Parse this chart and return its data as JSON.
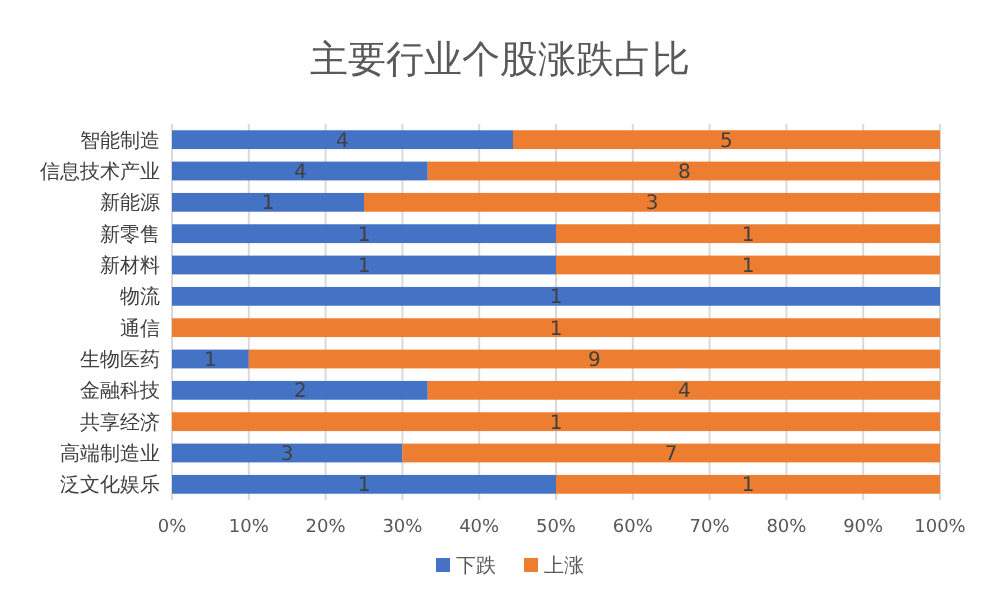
{
  "chart_data": {
    "type": "bar",
    "title": "主要行业个股涨跌占比",
    "orientation": "horizontal",
    "stacked": true,
    "categories": [
      "智能制造",
      "信息技术产业",
      "新能源",
      "新零售",
      "新材料",
      "物流",
      "通信",
      "生物医药",
      "金融科技",
      "共享经济",
      "高端制造业",
      "泛文化娱乐"
    ],
    "series": [
      {
        "name": "下跌",
        "color": "#4472c4",
        "values": [
          44.4,
          33.3,
          25,
          50,
          50,
          100,
          0,
          10,
          33.3,
          0,
          30,
          50
        ]
      },
      {
        "name": "上涨",
        "color": "#ed7d31",
        "values": [
          55.6,
          66.7,
          75,
          50,
          50,
          0,
          100,
          90,
          66.7,
          100,
          70,
          50
        ]
      }
    ],
    "annotations": [
      {
        "text": "4",
        "x": 22.2,
        "y": "智能制造"
      },
      {
        "text": "5",
        "x": 72.2,
        "y": "智能制造"
      },
      {
        "text": "4",
        "x": 16.7,
        "y": "信息技术产业"
      },
      {
        "text": "8",
        "x": 66.7,
        "y": "信息技术产业"
      },
      {
        "text": "1",
        "x": 12.5,
        "y": "新能源"
      },
      {
        "text": "3",
        "x": 62.5,
        "y": "新能源"
      },
      {
        "text": "1",
        "x": 25,
        "y": "新零售"
      },
      {
        "text": "1",
        "x": 75,
        "y": "新零售"
      },
      {
        "text": "1",
        "x": 25,
        "y": "新材料"
      },
      {
        "text": "1",
        "x": 75,
        "y": "新材料"
      },
      {
        "text": "1",
        "x": 50,
        "y": "物流"
      },
      {
        "text": "1",
        "x": 50,
        "y": "通信"
      },
      {
        "text": "1",
        "x": 5,
        "y": "生物医药"
      },
      {
        "text": "9",
        "x": 55,
        "y": "生物医药"
      },
      {
        "text": "2",
        "x": 16.7,
        "y": "金融科技"
      },
      {
        "text": "4",
        "x": 66.7,
        "y": "金融科技"
      },
      {
        "text": "1",
        "x": 50,
        "y": "共享经济"
      },
      {
        "text": "3",
        "x": 15,
        "y": "高端制造业"
      },
      {
        "text": "7",
        "x": 65,
        "y": "高端制造业"
      },
      {
        "text": "1",
        "x": 25,
        "y": "泛文化娱乐"
      },
      {
        "text": "1",
        "x": 75,
        "y": "泛文化娱乐"
      }
    ],
    "xlim": [
      0,
      100
    ],
    "xticks": [
      {
        "value": 0,
        "label": "0%"
      },
      {
        "value": 10,
        "label": "10%"
      },
      {
        "value": 20,
        "label": "20%"
      },
      {
        "value": 30,
        "label": "30%"
      },
      {
        "value": 40,
        "label": "40%"
      },
      {
        "value": 50,
        "label": "50%"
      },
      {
        "value": 60,
        "label": "60%"
      },
      {
        "value": 70,
        "label": "70%"
      },
      {
        "value": 80,
        "label": "80%"
      },
      {
        "value": 90,
        "label": "90%"
      },
      {
        "value": 100,
        "label": "100%"
      }
    ],
    "grid": "x",
    "legend": "bottom"
  }
}
